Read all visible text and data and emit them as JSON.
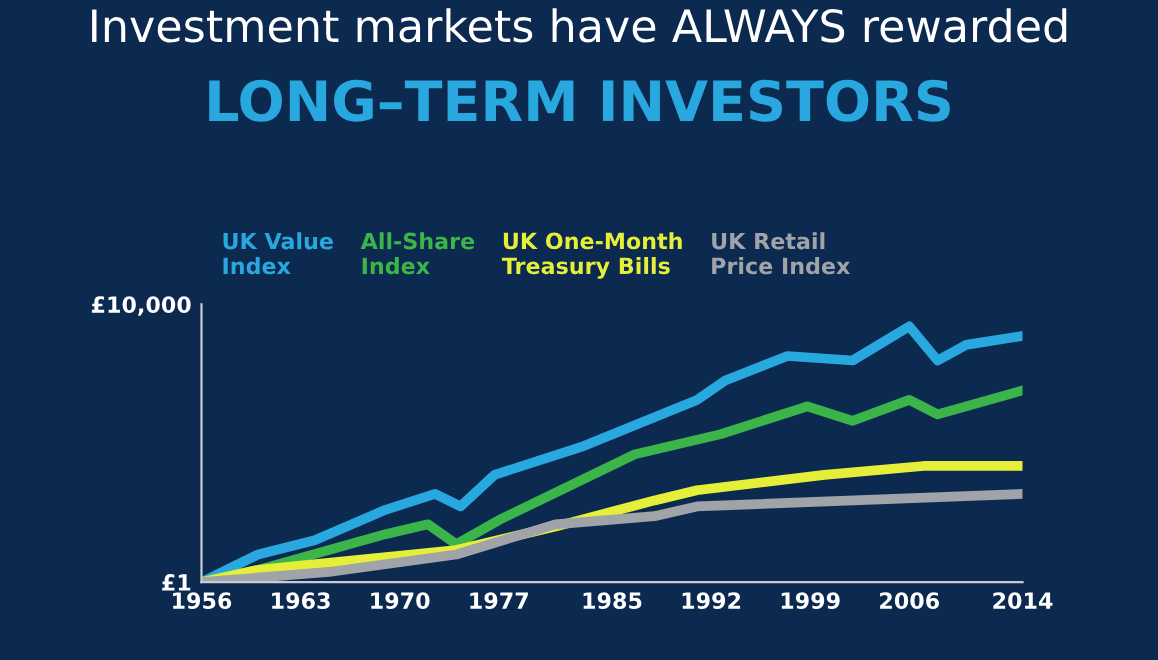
{
  "chart_data": {
    "type": "line",
    "title": "Investment markets have ALWAYS rewarded",
    "subtitle": "LONG–TERM INVESTORS",
    "log": "y",
    "xlim": [
      1956,
      2014
    ],
    "ylim": [
      1,
      10000
    ],
    "xticks": [
      1956,
      1963,
      1970,
      1977,
      1985,
      1992,
      1999,
      2006,
      2014
    ],
    "yticks": [
      {
        "value": 1,
        "label": "£1"
      },
      {
        "value": 10000,
        "label": "£10,000"
      }
    ],
    "grid": false,
    "legend": "top left",
    "series": [
      {
        "name": "UK Value\nIndex",
        "color": "#29a8e0",
        "x": [
          1956,
          1960,
          1964,
          1969,
          1972.5,
          1974.3,
          1976.7,
          1983,
          1991,
          1993,
          1997.4,
          2002,
          2006,
          2008,
          2010,
          2014
        ],
        "values": [
          1,
          2.5,
          4,
          11,
          18.6,
          12.3,
          35,
          91,
          420,
          800,
          1800,
          1550,
          4800,
          1550,
          2600,
          3500
        ]
      },
      {
        "name": "All-Share\nIndex",
        "color": "#3bb54a",
        "x": [
          1956,
          1960,
          1969,
          1972,
          1974,
          1977,
          1986.6,
          1992.7,
          1998.8,
          2002,
          2006,
          2008,
          2014
        ],
        "values": [
          1,
          1.5,
          4.9,
          6.8,
          3.5,
          7.8,
          69,
          135,
          340,
          210,
          420,
          260,
          575
        ]
      },
      {
        "name": "UK One-Month\nTreasury Bills",
        "color": "#e5ef3a",
        "x": [
          1956,
          1960,
          1974,
          1981,
          1988,
          1991,
          2000,
          2007,
          2014
        ],
        "values": [
          1,
          1.5,
          2.9,
          6.3,
          15,
          21,
          35,
          47,
          47
        ]
      },
      {
        "name": "UK Retail\nPrice Index",
        "color": "#a0a3a8",
        "x": [
          1956,
          1965,
          1974,
          1981,
          1988,
          1991,
          2014
        ],
        "values": [
          1,
          1.4,
          2.5,
          6.8,
          8.9,
          12.3,
          18.6
        ]
      }
    ]
  }
}
